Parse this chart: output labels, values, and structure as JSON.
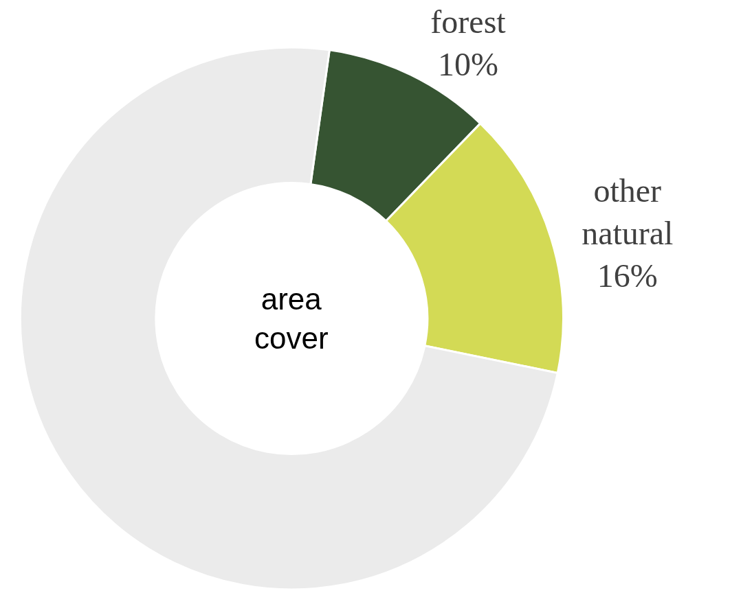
{
  "chart_data": {
    "type": "donut",
    "categories": [
      "forest",
      "other natural",
      null
    ],
    "values": [
      10,
      16,
      74
    ],
    "value_labels": [
      "10%",
      "16%",
      null
    ],
    "colors": [
      "#365432",
      "#d3da55",
      "#ebebeb"
    ],
    "annotations": [
      "area cover"
    ],
    "legend": false
  }
}
